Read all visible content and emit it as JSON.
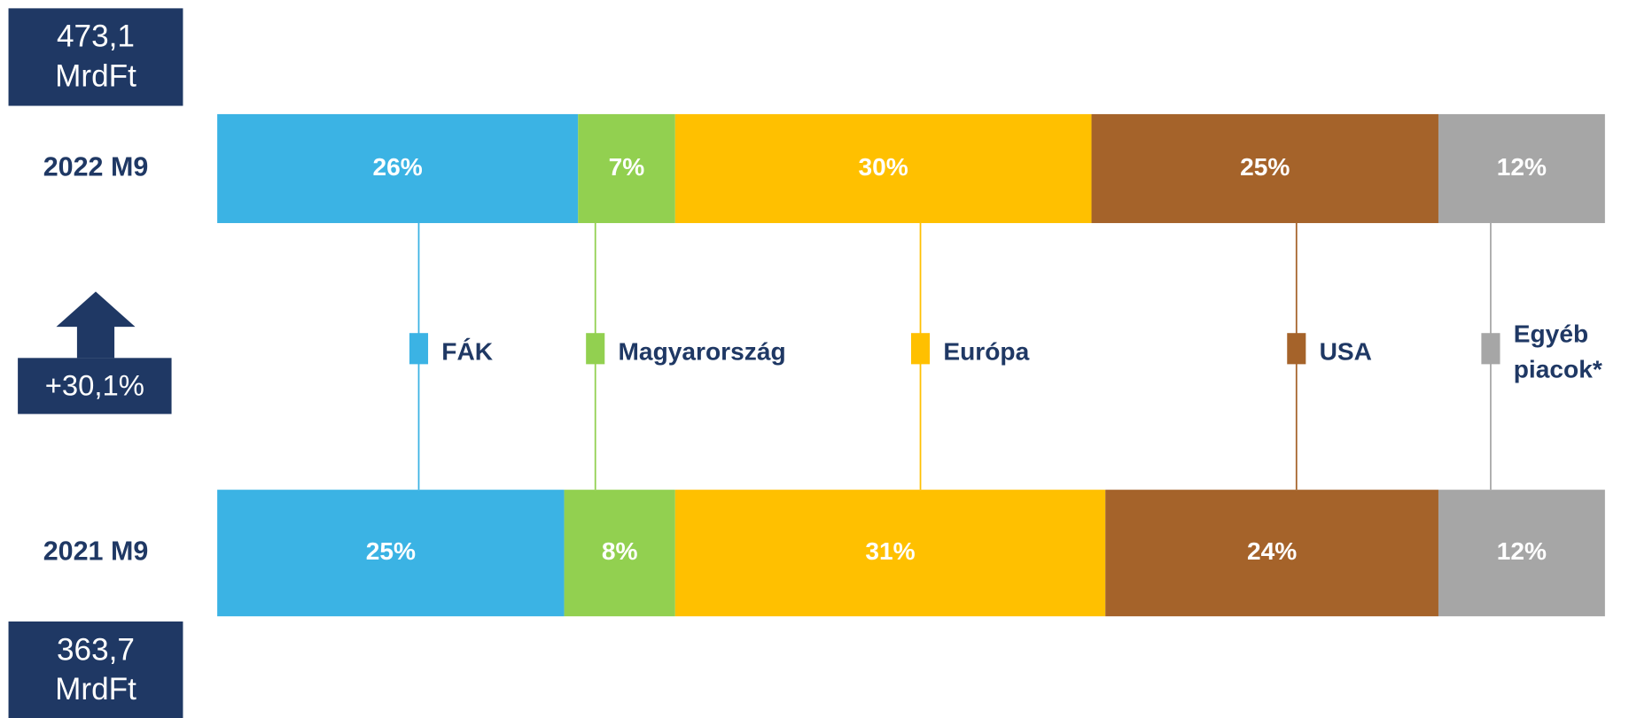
{
  "chart_data": {
    "type": "bar",
    "orientation": "horizontal",
    "stacked": true,
    "categories": [
      "2022 M9",
      "2021 M9"
    ],
    "xlim": [
      0,
      100
    ],
    "series": [
      {
        "name": "FÁK",
        "color": "#3bb3e4",
        "values": [
          26,
          25
        ],
        "value_labels": [
          "26%",
          "25%"
        ]
      },
      {
        "name": "Magyarország",
        "color": "#92d050",
        "values": [
          7,
          8
        ],
        "value_labels": [
          "7%",
          "8%"
        ]
      },
      {
        "name": "Európa",
        "color": "#ffc000",
        "values": [
          30,
          31
        ],
        "value_labels": [
          "30%",
          "31%"
        ]
      },
      {
        "name": "USA",
        "color": "#a5632a",
        "values": [
          25,
          24
        ],
        "value_labels": [
          "25%",
          "24%"
        ]
      },
      {
        "name": "Egyéb piacok*",
        "color": "#a6a6a6",
        "values": [
          12,
          12
        ],
        "value_labels": [
          "12%",
          "12%"
        ]
      }
    ],
    "totals": [
      "473,1 MrdFt",
      "363,7 MrdFt"
    ],
    "change": "+30,1%"
  }
}
